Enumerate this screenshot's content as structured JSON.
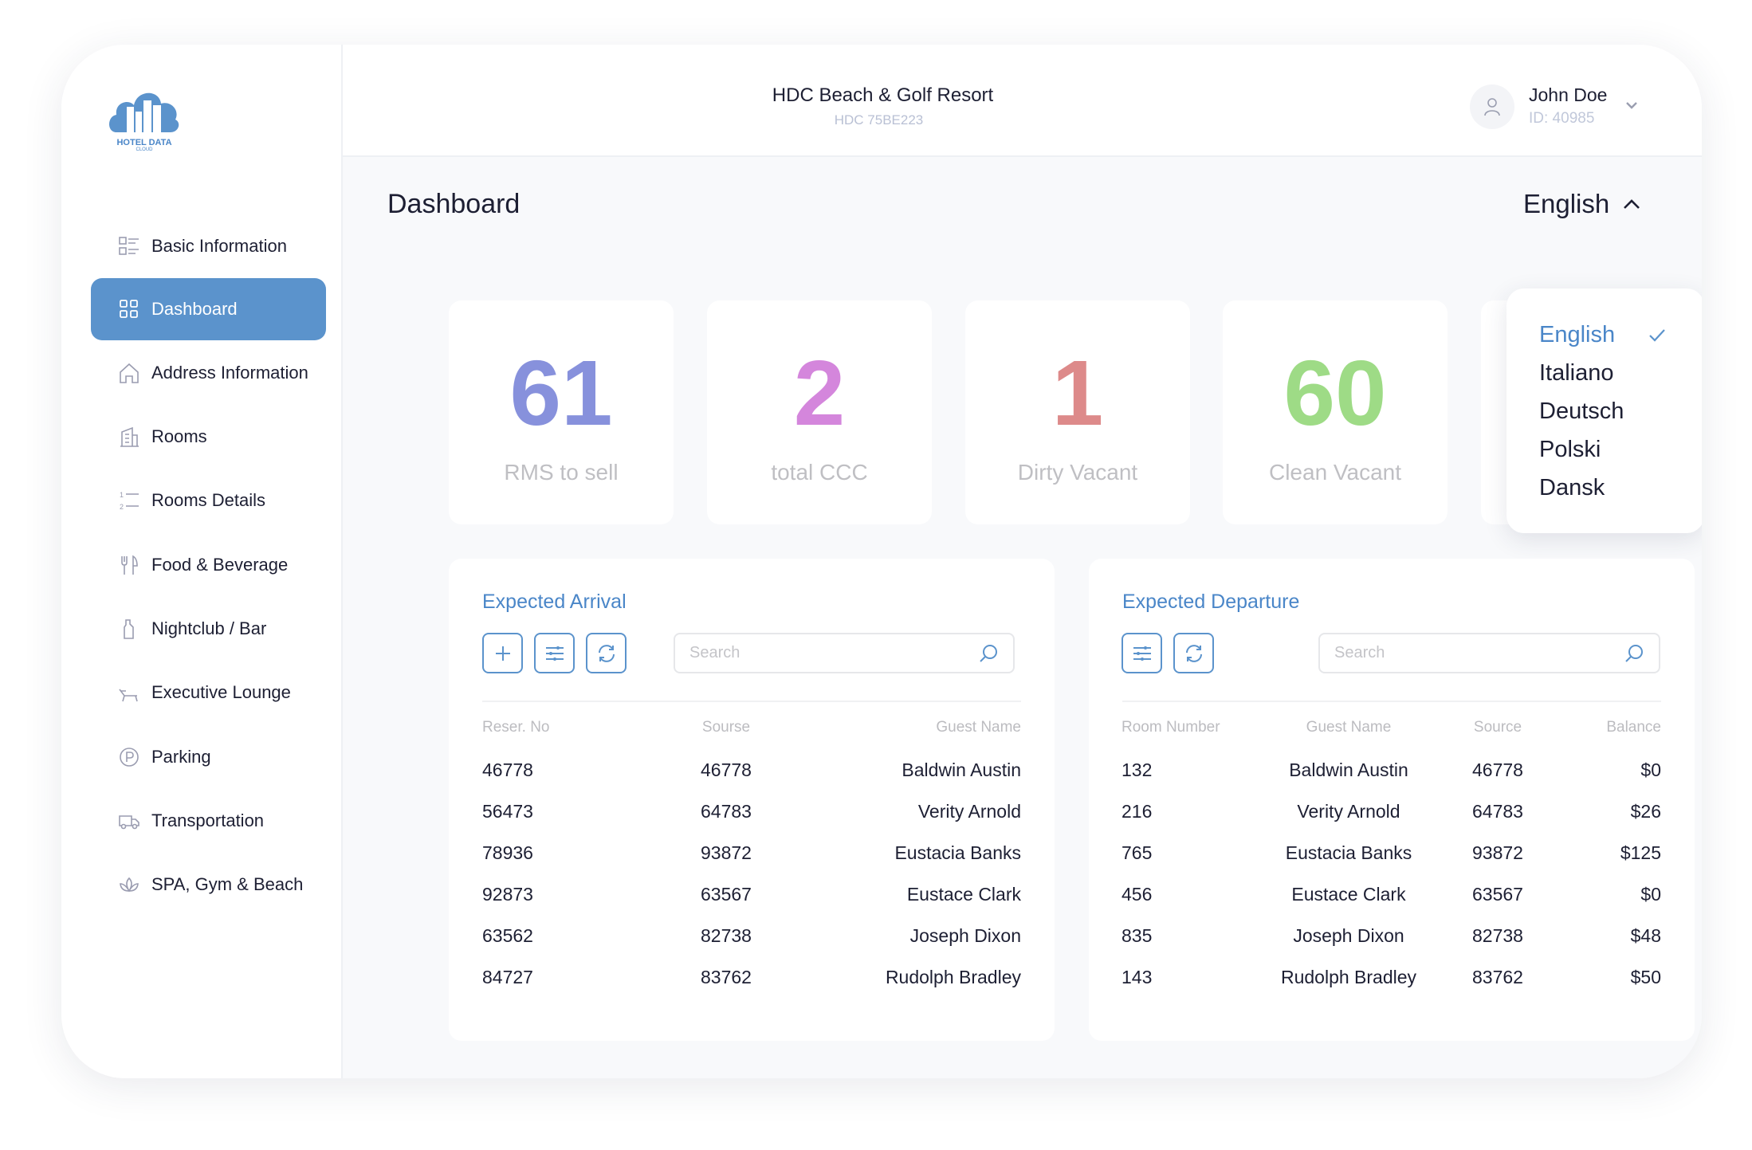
{
  "brand": {
    "logo_text": "HOTEL DATA",
    "logo_subtext": "CLOUD",
    "color": "#5b93cc"
  },
  "sidebar": {
    "items": [
      {
        "label": "Basic Information",
        "icon": "list-icon"
      },
      {
        "label": "Dashboard",
        "icon": "grid-icon",
        "active": true
      },
      {
        "label": "Address Information",
        "icon": "home-icon"
      },
      {
        "label": "Rooms",
        "icon": "building-icon"
      },
      {
        "label": "Rooms Details",
        "icon": "numbered-list-icon"
      },
      {
        "label": "Food & Beverage",
        "icon": "cutlery-icon"
      },
      {
        "label": "Nightclub / Bar",
        "icon": "drink-icon"
      },
      {
        "label": "Executive Lounge",
        "icon": "lounge-chair-icon"
      },
      {
        "label": "Parking",
        "icon": "parking-icon"
      },
      {
        "label": "Transportation",
        "icon": "truck-icon"
      },
      {
        "label": "SPA, Gym & Beach",
        "icon": "spa-icon"
      }
    ]
  },
  "header": {
    "title": "HDC Beach & Golf Resort",
    "subtitle": "HDC 75BE223",
    "user": {
      "name": "John Doe",
      "id": "ID: 40985"
    }
  },
  "page": {
    "title": "Dashboard",
    "language": "English"
  },
  "language_menu": {
    "options": [
      "English",
      "Italiano",
      "Deutsch",
      "Polski",
      "Dansk"
    ],
    "selected": "English"
  },
  "stats": [
    {
      "value": "61",
      "label": "RMS to sell",
      "color": "#8791dc"
    },
    {
      "value": "2",
      "label": "total CCC",
      "color": "#d486dc"
    },
    {
      "value": "1",
      "label": "Dirty Vacant",
      "color": "#dd8a8a"
    },
    {
      "value": "60",
      "label": "Clean Vacant",
      "color": "#9edb86"
    }
  ],
  "arrival": {
    "title": "Expected Arrival",
    "search_placeholder": "Search",
    "columns": [
      "Reser. No",
      "Sourse",
      "Guest Name"
    ],
    "rows": [
      [
        "46778",
        "46778",
        "Baldwin Austin"
      ],
      [
        "56473",
        "64783",
        "Verity Arnold"
      ],
      [
        "78936",
        "93872",
        "Eustacia Banks"
      ],
      [
        "92873",
        "63567",
        "Eustace Clark"
      ],
      [
        "63562",
        "82738",
        "Joseph Dixon"
      ],
      [
        "84727",
        "83762",
        "Rudolph Bradley"
      ]
    ]
  },
  "departure": {
    "title": "Expected Departure",
    "search_placeholder": "Search",
    "columns": [
      "Room Number",
      "Guest Name",
      "Source",
      "Balance"
    ],
    "rows": [
      [
        "132",
        "Baldwin Austin",
        "46778",
        "$0"
      ],
      [
        "216",
        "Verity Arnold",
        "64783",
        "$26"
      ],
      [
        "765",
        "Eustacia Banks",
        "93872",
        "$125"
      ],
      [
        "456",
        "Eustace Clark",
        "63567",
        "$0"
      ],
      [
        "835",
        "Joseph Dixon",
        "82738",
        "$48"
      ],
      [
        "143",
        "Rudolph Bradley",
        "83762",
        "$50"
      ]
    ]
  }
}
